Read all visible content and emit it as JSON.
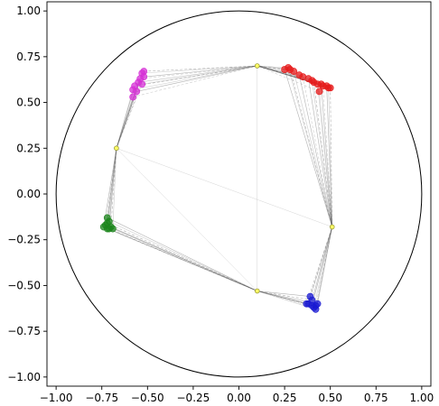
{
  "chart_data": {
    "type": "scatter",
    "title": "",
    "xlabel": "",
    "ylabel": "",
    "xlim": [
      -1.05,
      1.05
    ],
    "ylim": [
      -1.05,
      1.05
    ],
    "grid": false,
    "legend": "none",
    "xticks": [
      -1.0,
      -0.75,
      -0.5,
      -0.25,
      0.0,
      0.25,
      0.5,
      0.75,
      1.0
    ],
    "xtick_labels": [
      "−1.00",
      "−0.75",
      "−0.50",
      "−0.25",
      "0.00",
      "0.25",
      "0.50",
      "0.75",
      "1.00"
    ],
    "yticks": [
      1.0,
      0.75,
      0.5,
      0.25,
      0.0,
      -0.25,
      -0.5,
      -0.75,
      -1.0
    ],
    "ytick_labels": [
      "1.00",
      "0.75",
      "0.50",
      "0.25",
      "0.00",
      "−0.25",
      "−0.50",
      "−0.75",
      "−1.00"
    ],
    "unit_circle": {
      "center": [
        0,
        0
      ],
      "radius": 1.0,
      "color": "#000000"
    },
    "centers": {
      "color": "#ffff66",
      "stroke": "#999933",
      "points": [
        [
          0.1,
          0.7
        ],
        [
          0.51,
          -0.18
        ],
        [
          0.1,
          -0.53
        ],
        [
          -0.67,
          0.25
        ]
      ]
    },
    "series": [
      {
        "color": "#e6191a",
        "center_links": [
          0,
          1
        ],
        "points": [
          [
            0.25,
            0.68
          ],
          [
            0.27,
            0.69
          ],
          [
            0.28,
            0.68
          ],
          [
            0.3,
            0.67
          ],
          [
            0.33,
            0.65
          ],
          [
            0.35,
            0.64
          ],
          [
            0.38,
            0.63
          ],
          [
            0.4,
            0.62
          ],
          [
            0.41,
            0.61
          ],
          [
            0.43,
            0.6
          ],
          [
            0.45,
            0.6
          ],
          [
            0.46,
            0.59
          ],
          [
            0.48,
            0.59
          ],
          [
            0.49,
            0.58
          ],
          [
            0.5,
            0.58
          ],
          [
            0.44,
            0.56
          ]
        ]
      },
      {
        "color": "#d52fd5",
        "center_links": [
          0,
          3
        ],
        "points": [
          [
            -0.52,
            0.67
          ],
          [
            -0.53,
            0.66
          ],
          [
            -0.52,
            0.64
          ],
          [
            -0.54,
            0.63
          ],
          [
            -0.55,
            0.61
          ],
          [
            -0.53,
            0.6
          ],
          [
            -0.57,
            0.59
          ],
          [
            -0.58,
            0.57
          ],
          [
            -0.56,
            0.56
          ],
          [
            -0.58,
            0.53
          ]
        ]
      },
      {
        "color": "#1c861c",
        "center_links": [
          3,
          2
        ],
        "points": [
          [
            -0.72,
            -0.13
          ],
          [
            -0.71,
            -0.15
          ],
          [
            -0.72,
            -0.16
          ],
          [
            -0.73,
            -0.17
          ],
          [
            -0.74,
            -0.18
          ],
          [
            -0.72,
            -0.19
          ],
          [
            -0.7,
            -0.18
          ],
          [
            -0.69,
            -0.19
          ],
          [
            -0.71,
            -0.19
          ]
        ]
      },
      {
        "color": "#1a1ad2",
        "center_links": [
          1,
          2
        ],
        "points": [
          [
            0.39,
            -0.56
          ],
          [
            0.38,
            -0.6
          ],
          [
            0.4,
            -0.61
          ],
          [
            0.42,
            -0.61
          ],
          [
            0.43,
            -0.6
          ],
          [
            0.41,
            -0.62
          ],
          [
            0.37,
            -0.6
          ],
          [
            0.42,
            -0.63
          ],
          [
            0.4,
            -0.58
          ]
        ]
      }
    ]
  }
}
